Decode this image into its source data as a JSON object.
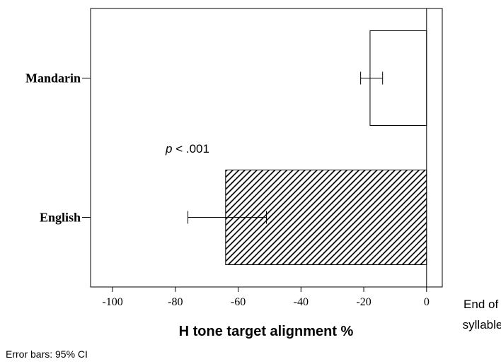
{
  "chart_data": {
    "type": "bar",
    "orientation": "horizontal",
    "categories": [
      "Mandarin",
      "English"
    ],
    "values": [
      -18,
      -64
    ],
    "error_bars": [
      {
        "category": "Mandarin",
        "low": -21,
        "high": -14
      },
      {
        "category": "English",
        "low": -76,
        "high": -51
      }
    ],
    "bar_fills": [
      "none",
      "diagonal-hatch"
    ],
    "xlabel": "H tone target alignment %",
    "ylabel": "",
    "xlim": [
      -107,
      5
    ],
    "x_ticks": [
      -100,
      -80,
      -60,
      -40,
      -20,
      0
    ],
    "x_tick_labels": [
      "-100",
      "-80",
      "-60",
      "-40",
      "-20",
      "0"
    ],
    "reference_line": {
      "value": 0,
      "label_lines": [
        "End of",
        "syllable"
      ]
    },
    "annotation": {
      "italic": "p",
      "rest": " < .001"
    },
    "footnote": "Error bars: 95% CI",
    "grid": false,
    "legend": "none"
  }
}
